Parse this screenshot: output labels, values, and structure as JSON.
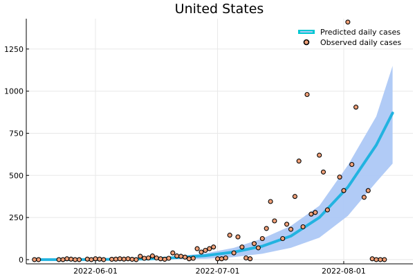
{
  "chart_data": {
    "type": "scatter",
    "title": "United States",
    "xlabel": "",
    "ylabel": "",
    "x_type": "date",
    "xlim": [
      "2022-05-15",
      "2022-08-18"
    ],
    "ylim": [
      -25,
      1430
    ],
    "x_ticks": [
      "2022-06-01",
      "2022-07-01",
      "2022-08-01"
    ],
    "y_ticks": [
      0,
      250,
      500,
      750,
      1000,
      1250
    ],
    "grid": true,
    "legend": "top-right",
    "colors": {
      "predicted_line": "#22b3e0",
      "predicted_band": "#adc8f5",
      "legend_line": "#00c8d2",
      "observed_fill": "#f0a078",
      "observed_edge": "#000000"
    },
    "series": [
      {
        "name": "Predicted daily cases",
        "kind": "line_band",
        "x": [
          "2022-05-17",
          "2022-05-24",
          "2022-05-31",
          "2022-06-07",
          "2022-06-14",
          "2022-06-21",
          "2022-06-28",
          "2022-07-05",
          "2022-07-12",
          "2022-07-19",
          "2022-07-26",
          "2022-08-02",
          "2022-08-09",
          "2022-08-13"
        ],
        "y": [
          0,
          0,
          1,
          2,
          4,
          12,
          24,
          45,
          80,
          140,
          250,
          430,
          680,
          870
        ],
        "lower": [
          0,
          0,
          0,
          0,
          0,
          3,
          5,
          15,
          35,
          70,
          130,
          260,
          460,
          570
        ],
        "upper": [
          0,
          1,
          3,
          5,
          10,
          20,
          38,
          70,
          125,
          200,
          320,
          560,
          850,
          1150
        ]
      },
      {
        "name": "Observed daily cases",
        "kind": "scatter",
        "x": [
          "2022-05-17",
          "2022-05-18",
          "2022-05-23",
          "2022-05-24",
          "2022-05-25",
          "2022-05-26",
          "2022-05-27",
          "2022-05-28",
          "2022-05-30",
          "2022-05-31",
          "2022-06-01",
          "2022-06-02",
          "2022-06-03",
          "2022-06-05",
          "2022-06-06",
          "2022-06-07",
          "2022-06-08",
          "2022-06-09",
          "2022-06-10",
          "2022-06-11",
          "2022-06-12",
          "2022-06-13",
          "2022-06-14",
          "2022-06-15",
          "2022-06-16",
          "2022-06-17",
          "2022-06-18",
          "2022-06-19",
          "2022-06-20",
          "2022-06-21",
          "2022-06-22",
          "2022-06-23",
          "2022-06-24",
          "2022-06-25",
          "2022-06-26",
          "2022-06-27",
          "2022-06-28",
          "2022-06-29",
          "2022-06-30",
          "2022-07-01",
          "2022-07-02",
          "2022-07-03",
          "2022-07-04",
          "2022-07-05",
          "2022-07-06",
          "2022-07-07",
          "2022-07-08",
          "2022-07-09",
          "2022-07-10",
          "2022-07-11",
          "2022-07-12",
          "2022-07-13",
          "2022-07-14",
          "2022-07-15",
          "2022-07-17",
          "2022-07-18",
          "2022-07-19",
          "2022-07-20",
          "2022-07-21",
          "2022-07-22",
          "2022-07-23",
          "2022-07-24",
          "2022-07-25",
          "2022-07-26",
          "2022-07-27",
          "2022-07-28",
          "2022-07-31",
          "2022-08-01",
          "2022-08-02",
          "2022-08-03",
          "2022-08-04",
          "2022-08-06",
          "2022-08-07",
          "2022-08-08",
          "2022-08-09",
          "2022-08-10",
          "2022-08-11"
        ],
        "y": [
          0,
          0,
          0,
          0,
          5,
          3,
          0,
          0,
          3,
          0,
          5,
          3,
          0,
          2,
          3,
          5,
          3,
          5,
          2,
          0,
          20,
          8,
          10,
          22,
          10,
          5,
          2,
          8,
          40,
          22,
          20,
          15,
          5,
          8,
          65,
          45,
          55,
          65,
          75,
          5,
          5,
          10,
          145,
          40,
          135,
          75,
          10,
          5,
          95,
          70,
          125,
          185,
          345,
          230,
          125,
          210,
          180,
          375,
          585,
          195,
          980,
          270,
          280,
          620,
          520,
          295,
          490,
          410,
          1410,
          565,
          905,
          370,
          410,
          5,
          0,
          0,
          0
        ]
      }
    ]
  }
}
